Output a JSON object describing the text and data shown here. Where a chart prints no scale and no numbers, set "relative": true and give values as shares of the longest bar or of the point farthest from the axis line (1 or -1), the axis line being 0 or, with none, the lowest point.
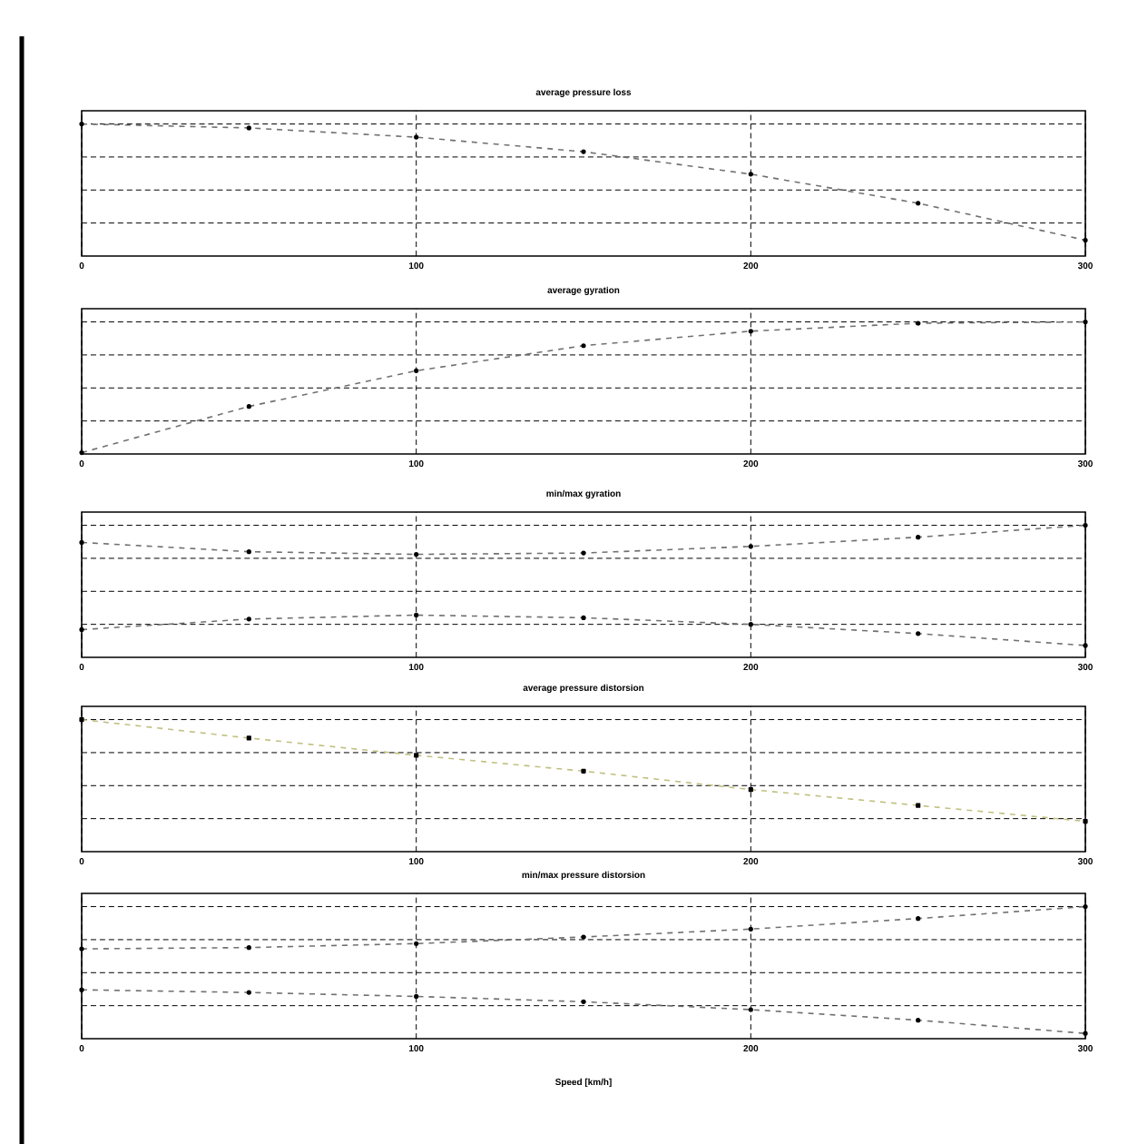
{
  "chart_data": [
    {
      "type": "line",
      "title": "average pressure loss",
      "x": [
        0,
        50,
        100,
        150,
        200,
        250,
        300
      ],
      "xlim": [
        0,
        300
      ],
      "xticks": [
        0,
        100,
        200,
        300
      ],
      "relative": true,
      "grid": true,
      "marker": "circle",
      "line_style": "dashed",
      "tick_labels": "x",
      "series": [
        {
          "color": "#707070",
          "values": [
            1,
            0.97,
            0.9,
            0.79,
            0.62,
            0.4,
            0.12
          ]
        }
      ]
    },
    {
      "type": "line",
      "title": "average gyration",
      "x": [
        0,
        50,
        100,
        150,
        200,
        250,
        300
      ],
      "xlim": [
        0,
        300
      ],
      "xticks": [
        0,
        100,
        200,
        300
      ],
      "relative": true,
      "grid": true,
      "marker": "circle",
      "line_style": "dashed",
      "tick_labels": "x",
      "series": [
        {
          "color": "#707070",
          "values": [
            0.01,
            0.36,
            0.63,
            0.82,
            0.93,
            0.99,
            1
          ]
        }
      ]
    },
    {
      "type": "line",
      "title": "min/max gyration",
      "x": [
        0,
        50,
        100,
        150,
        200,
        250,
        300
      ],
      "xlim": [
        0,
        300
      ],
      "xticks": [
        0,
        100,
        200,
        300
      ],
      "relative": true,
      "grid": true,
      "marker": "circle",
      "line_style": "dashed",
      "tick_labels": "x",
      "series": [
        {
          "color": "#707070",
          "values": [
            0.87,
            0.8,
            0.78,
            0.79,
            0.84,
            0.91,
            1
          ]
        },
        {
          "color": "#707070",
          "values": [
            0.21,
            0.29,
            0.32,
            0.3,
            0.25,
            0.18,
            0.09
          ]
        }
      ]
    },
    {
      "type": "line",
      "title": "average pressure distorsion",
      "x": [
        0,
        50,
        100,
        150,
        200,
        250,
        300
      ],
      "xlim": [
        0,
        300
      ],
      "xticks": [
        0,
        100,
        200,
        300
      ],
      "relative": true,
      "grid": true,
      "marker": "square",
      "line_style": "dashed",
      "tick_labels": "x",
      "series": [
        {
          "color": "#c0c080",
          "values": [
            1,
            0.86,
            0.73,
            0.61,
            0.47,
            0.35,
            0.23
          ]
        }
      ]
    },
    {
      "type": "line",
      "title": "min/max pressure distorsion",
      "xlabel": "Speed [km/h]",
      "x": [
        0,
        50,
        100,
        150,
        200,
        250,
        300
      ],
      "xlim": [
        0,
        300
      ],
      "xticks": [
        0,
        100,
        200,
        300
      ],
      "relative": true,
      "grid": true,
      "marker": "circle",
      "line_style": "dashed",
      "tick_labels": "x",
      "series": [
        {
          "color": "#707070",
          "values": [
            0.68,
            0.69,
            0.72,
            0.77,
            0.83,
            0.91,
            1
          ]
        },
        {
          "color": "#707070",
          "values": [
            0.37,
            0.35,
            0.32,
            0.28,
            0.22,
            0.14,
            0.04
          ]
        }
      ]
    }
  ]
}
